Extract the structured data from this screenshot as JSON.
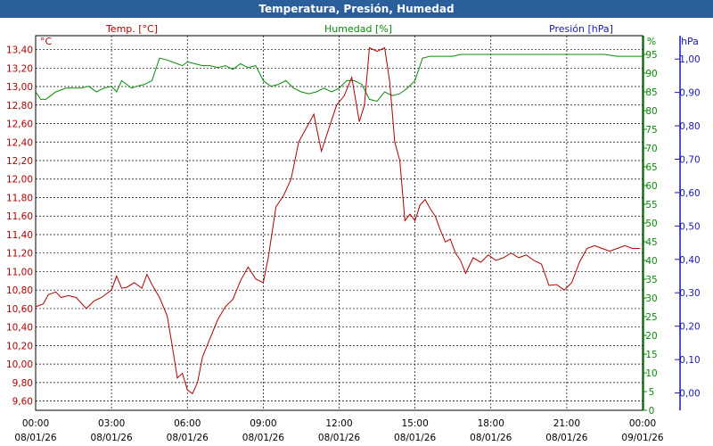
{
  "window": {
    "title": "Temperatura, Presión, Humedad"
  },
  "chart_data": {
    "type": "line",
    "title": "Temperatura, Presión, Humedad",
    "series_labels": [
      "Temp. [°C]",
      "Humedad [%]",
      "Presión [hPa]"
    ],
    "axes": {
      "left": {
        "unit": "°C",
        "ticks": [
          "9,60",
          "9,80",
          "10,00",
          "10,20",
          "10,40",
          "10,60",
          "10,80",
          "11,00",
          "11,20",
          "11,40",
          "11,60",
          "11,80",
          "12,00",
          "12,20",
          "12,40",
          "12,60",
          "12,80",
          "13,00",
          "13,20",
          "13,40"
        ],
        "range": [
          9.5,
          13.55
        ]
      },
      "right_humidity": {
        "unit": "%",
        "ticks": [
          "0",
          "5",
          "10",
          "15",
          "20",
          "25",
          "30",
          "35",
          "40",
          "45",
          "50",
          "55",
          "60",
          "65",
          "70",
          "75",
          "80",
          "85",
          "90",
          "95"
        ],
        "range": [
          0,
          100
        ]
      },
      "right_pressure": {
        "unit": "hPa",
        "ticks": [
          "0,00",
          "0,10",
          "0,20",
          "0,30",
          "0,40",
          "0,50",
          "0,60",
          "0,70",
          "0,80",
          "0,90",
          "1,00"
        ],
        "range": [
          -0.052,
          1.07
        ]
      },
      "x": {
        "tick_times": [
          "00:00",
          "03:00",
          "06:00",
          "09:00",
          "12:00",
          "15:00",
          "18:00",
          "21:00",
          "00:00"
        ],
        "tick_dates": [
          "08/01/26",
          "08/01/26",
          "08/01/26",
          "08/01/26",
          "08/01/26",
          "08/01/26",
          "08/01/26",
          "08/01/26",
          "09/01/26"
        ],
        "range_hours": [
          0,
          24
        ]
      }
    },
    "grid": true,
    "colors": {
      "temperature": "#b00000",
      "humidity": "#0a8a0a",
      "pressure": "#1a1ab0",
      "title_bar": "#2a5f9c"
    },
    "temperature": {
      "x": [
        0,
        0.3,
        0.5,
        0.8,
        1,
        1.3,
        1.6,
        2,
        2.3,
        2.6,
        3,
        3.2,
        3.4,
        3.6,
        3.9,
        4.2,
        4.4,
        4.6,
        4.9,
        5.2,
        5.4,
        5.6,
        5.8,
        6.0,
        6.2,
        6.4,
        6.6,
        6.9,
        7.2,
        7.5,
        7.8,
        8.1,
        8.4,
        8.7,
        9.0,
        9.2,
        9.5,
        9.8,
        10.1,
        10.4,
        10.7,
        11.0,
        11.3,
        11.6,
        11.9,
        12.2,
        12.5,
        12.8,
        13.0,
        13.2,
        13.5,
        13.8,
        14.0,
        14.2,
        14.4,
        14.6,
        14.8,
        15.0,
        15.2,
        15.4,
        15.6,
        15.8,
        16.0,
        16.2,
        16.4,
        16.6,
        16.8,
        17.0,
        17.3,
        17.6,
        17.9,
        18.2,
        18.5,
        18.8,
        19.1,
        19.4,
        19.7,
        20.0,
        20.3,
        20.6,
        20.9,
        21.2,
        21.5,
        21.8,
        22.1,
        22.4,
        22.7,
        23.0,
        23.3,
        23.6,
        23.9
      ],
      "y": [
        10.62,
        10.65,
        10.75,
        10.78,
        10.72,
        10.74,
        10.72,
        10.6,
        10.68,
        10.72,
        10.8,
        10.95,
        10.82,
        10.83,
        10.88,
        10.82,
        10.97,
        10.86,
        10.72,
        10.52,
        10.2,
        9.85,
        9.9,
        9.72,
        9.68,
        9.8,
        10.08,
        10.28,
        10.48,
        10.62,
        10.7,
        10.9,
        11.05,
        10.92,
        10.88,
        11.15,
        11.7,
        11.82,
        12.0,
        12.4,
        12.55,
        12.7,
        12.3,
        12.55,
        12.8,
        12.9,
        13.1,
        12.62,
        12.8,
        13.42,
        13.38,
        13.42,
        13.05,
        12.4,
        12.2,
        11.55,
        11.62,
        11.55,
        11.72,
        11.78,
        11.68,
        11.6,
        11.45,
        11.32,
        11.35,
        11.2,
        11.12,
        10.98,
        11.15,
        11.1,
        11.18,
        11.12,
        11.15,
        11.2,
        11.15,
        11.18,
        11.12,
        11.08,
        10.85,
        10.86,
        10.8,
        10.88,
        11.1,
        11.25,
        11.28,
        11.25,
        11.22,
        11.25,
        11.28,
        11.25,
        11.25
      ],
      "note_end": "11,25"
    },
    "humidity": {
      "x": [
        0,
        0.2,
        0.4,
        0.6,
        0.8,
        1.0,
        1.2,
        1.5,
        1.8,
        2.1,
        2.4,
        2.7,
        3.0,
        3.2,
        3.4,
        3.6,
        3.8,
        4.0,
        4.3,
        4.6,
        4.9,
        5.2,
        5.4,
        5.6,
        5.8,
        6.0,
        6.3,
        6.6,
        6.9,
        7.2,
        7.5,
        7.8,
        8.1,
        8.4,
        8.7,
        9.0,
        9.3,
        9.6,
        9.9,
        10.2,
        10.5,
        10.8,
        11.1,
        11.4,
        11.7,
        12.0,
        12.3,
        12.6,
        12.9,
        13.2,
        13.5,
        13.8,
        14.1,
        14.4,
        14.7,
        15.0,
        15.3,
        15.6,
        15.9,
        16.2,
        16.5,
        16.8,
        17.1,
        17.4,
        17.7,
        18.0,
        18.5,
        19.0,
        19.5,
        20.0,
        20.5,
        21.0,
        21.5,
        22.0,
        22.5,
        23.0,
        23.5,
        24.0
      ],
      "y": [
        85,
        83,
        83,
        84,
        85,
        85.5,
        86,
        86,
        86,
        86.5,
        85,
        86,
        86.5,
        85,
        88,
        87,
        86,
        86.5,
        87,
        88,
        94,
        93.5,
        93,
        92.5,
        92,
        93,
        92.5,
        92,
        92,
        91.5,
        92,
        91,
        92.5,
        91.5,
        92,
        88,
        86.5,
        87,
        88,
        86,
        85,
        84.5,
        85,
        86,
        85,
        86,
        88,
        88,
        87,
        83,
        82.5,
        85,
        84,
        84.5,
        86,
        88,
        94,
        94.5,
        94.5,
        94.5,
        94.5,
        95,
        95,
        95,
        95,
        95,
        95,
        95,
        95,
        95,
        95,
        95,
        95,
        95,
        95,
        94.5,
        94.5,
        94.5
      ]
    },
    "pressure": {
      "y": [],
      "note": "no pressure data visible"
    }
  }
}
